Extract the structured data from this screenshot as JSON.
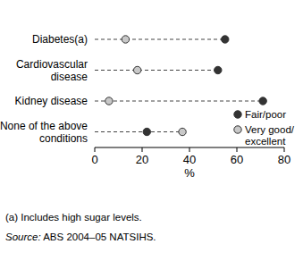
{
  "chart_data": {
    "type": "dot",
    "orientation": "horizontal",
    "categories": [
      "Diabetes(a)",
      "Cardiovascular disease",
      "Kidney disease",
      "None of the above conditions"
    ],
    "series": [
      {
        "name": "Fair/poor",
        "color": "#333333",
        "marker": "circle",
        "values": [
          55,
          52,
          71,
          22
        ]
      },
      {
        "name": "Very good/excellent",
        "color": "#c8c8c8",
        "marker": "circle",
        "values": [
          13,
          18,
          6,
          37
        ]
      }
    ],
    "xlim": [
      0,
      80
    ],
    "xticks": [
      0,
      20,
      40,
      60,
      80
    ],
    "x_label": "%",
    "legend": "lower right",
    "line_style": "dashed",
    "footnote": "(a) Includes high sugar levels.",
    "source": "Source: ABS 2004–05 NATSIHS."
  }
}
